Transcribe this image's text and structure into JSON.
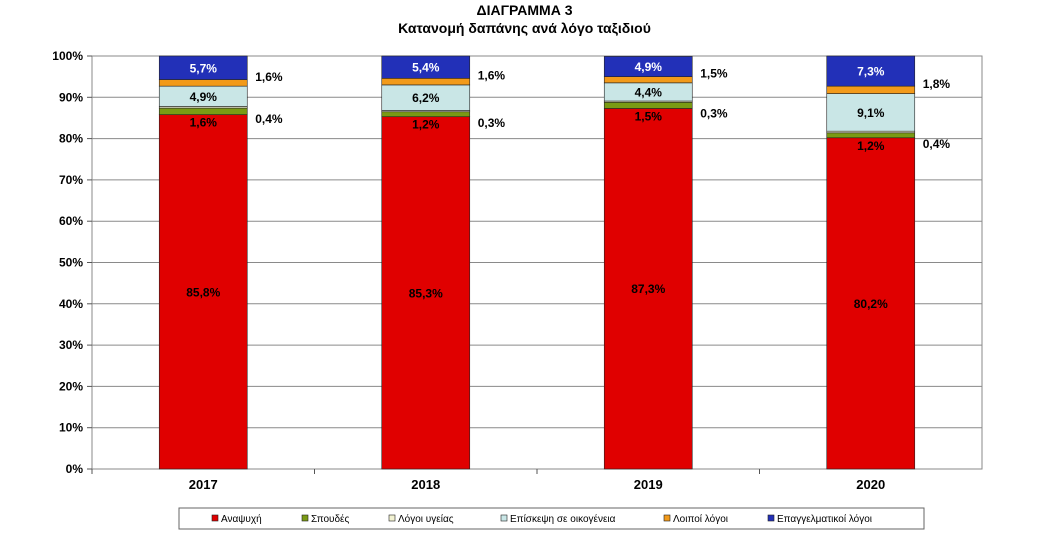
{
  "chart_data": {
    "type": "bar",
    "stacked": true,
    "title": "ΔΙΑΓΡΑΜΜΑ 3",
    "subtitle": "Κατανομή δαπάνης ανά λόγο ταξιδιού",
    "xlabel": "",
    "ylabel": "",
    "ylim": [
      0,
      100
    ],
    "y_ticks": [
      "0%",
      "10%",
      "20%",
      "30%",
      "40%",
      "50%",
      "60%",
      "70%",
      "80%",
      "90%",
      "100%"
    ],
    "grid": true,
    "legend_position": "bottom",
    "categories": [
      "2017",
      "2018",
      "2019",
      "2020"
    ],
    "series": [
      {
        "name": "Αναψυχή",
        "color": "#e00000",
        "values": [
          85.8,
          85.3,
          87.3,
          80.2
        ],
        "labels": [
          "85,8%",
          "85,3%",
          "87,3%",
          "80,2%"
        ],
        "label_pos": "inside"
      },
      {
        "name": "Σπουδές",
        "color": "#7a9a14",
        "values": [
          1.6,
          1.2,
          1.5,
          1.2
        ],
        "labels": [
          "1,6%",
          "1,2%",
          "1,5%",
          "1,2%"
        ],
        "label_pos": "below"
      },
      {
        "name": "Λόγοι υγείας",
        "color": "#f2f2d2",
        "values": [
          0.4,
          0.3,
          0.3,
          0.4
        ],
        "labels": [
          "0,4%",
          "0,3%",
          "0,3%",
          "0,4%"
        ],
        "label_pos": "right"
      },
      {
        "name": "Επίσκεψη σε οικογένεια",
        "color": "#c9e6e6",
        "values": [
          4.9,
          6.2,
          4.4,
          9.1
        ],
        "labels": [
          "4,9%",
          "6,2%",
          "4,4%",
          "9,1%"
        ],
        "label_pos": "inside"
      },
      {
        "name": "Λοιποί λόγοι",
        "color": "#f29a1a",
        "values": [
          1.6,
          1.6,
          1.5,
          1.8
        ],
        "labels": [
          "1,6%",
          "1,6%",
          "1,5%",
          "1,8%"
        ],
        "label_pos": "right"
      },
      {
        "name": "Επαγγελματικοί λόγοι",
        "color": "#2230b8",
        "values": [
          5.7,
          5.4,
          4.9,
          7.3
        ],
        "labels": [
          "5,7%",
          "5,4%",
          "4,9%",
          "7,3%"
        ],
        "label_pos": "inside"
      }
    ]
  }
}
